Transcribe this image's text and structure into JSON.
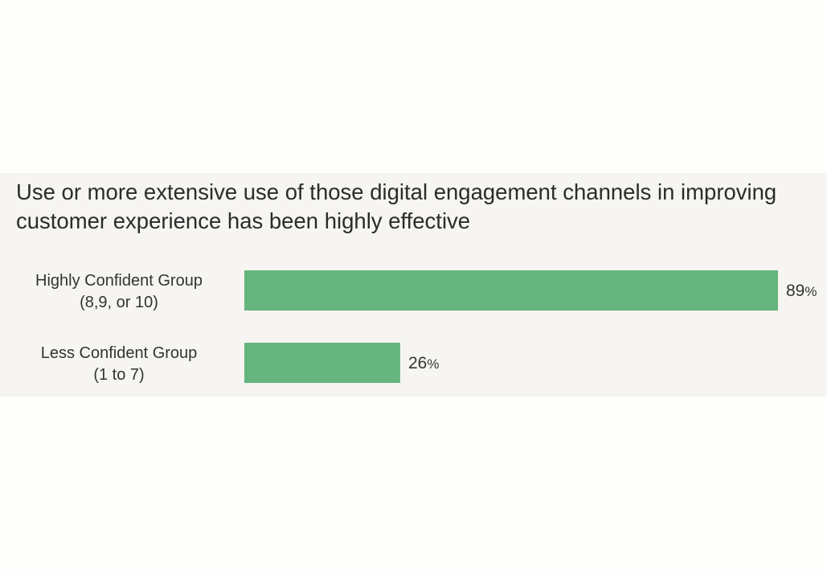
{
  "chart_data": {
    "type": "bar",
    "orientation": "horizontal",
    "title": "Use or more extensive use of those digital engagement channels in improving customer experience has been highly effective",
    "categories": [
      {
        "line1": "Highly Confident Group",
        "line2": "(8,9, or 10)"
      },
      {
        "line1": "Less Confident Group",
        "line2": "(1 to 7)"
      }
    ],
    "values": [
      89,
      26
    ],
    "value_unit": "%",
    "xlim": [
      0,
      89
    ],
    "xlabel": "",
    "ylabel": "",
    "legend": "none",
    "grid": false,
    "bar_color": "#66b57e"
  },
  "colors": {
    "panel_background": "#f6f5f2",
    "page_background": "#fefefd",
    "bar": "#66b57e",
    "text": "#333333"
  }
}
